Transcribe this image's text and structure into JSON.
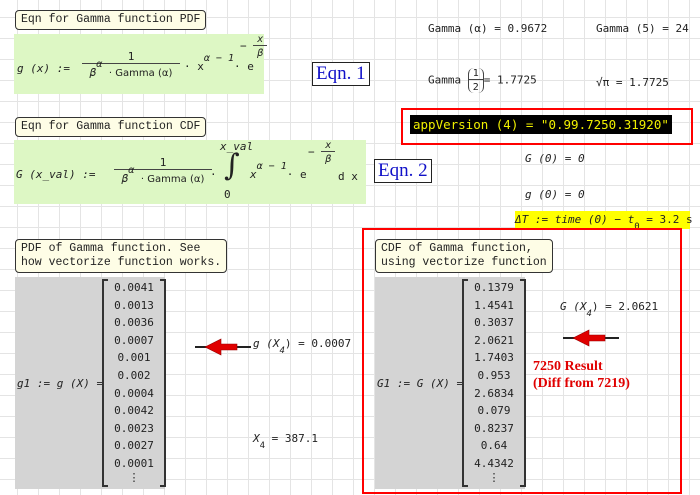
{
  "labels": {
    "pdf_eqn": "Eqn for Gamma function PDF",
    "cdf_eqn": "Eqn for Gamma function CDF",
    "pdf_vec": "PDF of Gamma function. See\nhow vectorize function works.",
    "cdf_vec": "CDF of Gamma function,\nusing vectorize function"
  },
  "eqn1": {
    "lhs": "g (x) :=",
    "num": "1",
    "den_base": "β",
    "den_exp": "α",
    "den_rest": "· Gamma (α)",
    "x": "· x",
    "exp": "α − 1",
    "e": "· e",
    "e_exp_num": "x",
    "e_exp_den": "β",
    "e_sign": "−",
    "tag": "Eqn. 1"
  },
  "eqn2": {
    "lhs": "G (x_val) :=",
    "num": "1",
    "den_base": "β",
    "den_exp": "α",
    "den_rest": "· Gamma (α)",
    "dot": "·",
    "int_upper": "x_val",
    "int_lower": "0",
    "x": "x",
    "exp": "α − 1",
    "e": "· e",
    "e_exp_num": "x",
    "e_exp_den": "β",
    "e_sign": "−",
    "dx": "d x",
    "tag": "Eqn. 2"
  },
  "results": {
    "gamma_alpha": "Gamma (α) = 0.9672",
    "gamma5": "Gamma (5) = 24",
    "gamma_half_pre": "Gamma",
    "gamma_half_num": "1",
    "gamma_half_den": "2",
    "gamma_half_val": "= 1.7725",
    "sqrt_pi": "√π = 1.7725",
    "app_version": "appVersion (4) = \"0.99.7250.31920\"",
    "G0": "G (0) = 0",
    "g0": "g (0) = 0",
    "deltaT": "ΔT := time (0) − t",
    "deltaT_sub": "0",
    "deltaT_val": " = 3.2 s"
  },
  "pdf": {
    "lhs": "g1 := g (X) =",
    "values": [
      "0.0041",
      "0.0013",
      "0.0036",
      "0.0007",
      "0.001",
      "0.002",
      "0.0004",
      "0.0042",
      "0.0023",
      "0.0027",
      "0.0001",
      "⋮"
    ],
    "gx4": "g (X",
    "gx4_sub": "4",
    "gx4_val": ") = 0.0007",
    "x4": "X",
    "x4_sub": "4",
    "x4_val": " = 387.1"
  },
  "cdf": {
    "lhs": "G1 := G (X) =",
    "values": [
      "0.1379",
      "1.4541",
      "0.3037",
      "2.0621",
      "1.7403",
      "0.953",
      "2.6834",
      "0.079",
      "0.8237",
      "0.64",
      "4.4342",
      "⋮"
    ],
    "Gx4": "G (X",
    "Gx4_sub": "4",
    "Gx4_val": ") = 2.0621",
    "note1": "7250 Result",
    "note2": "(Diff from 7219)"
  },
  "colors": {
    "highlight_red": "#ff0000",
    "green_region": "#ddf7c4",
    "yellow_highlight": "#ffff00",
    "arrow": "#e00000"
  }
}
